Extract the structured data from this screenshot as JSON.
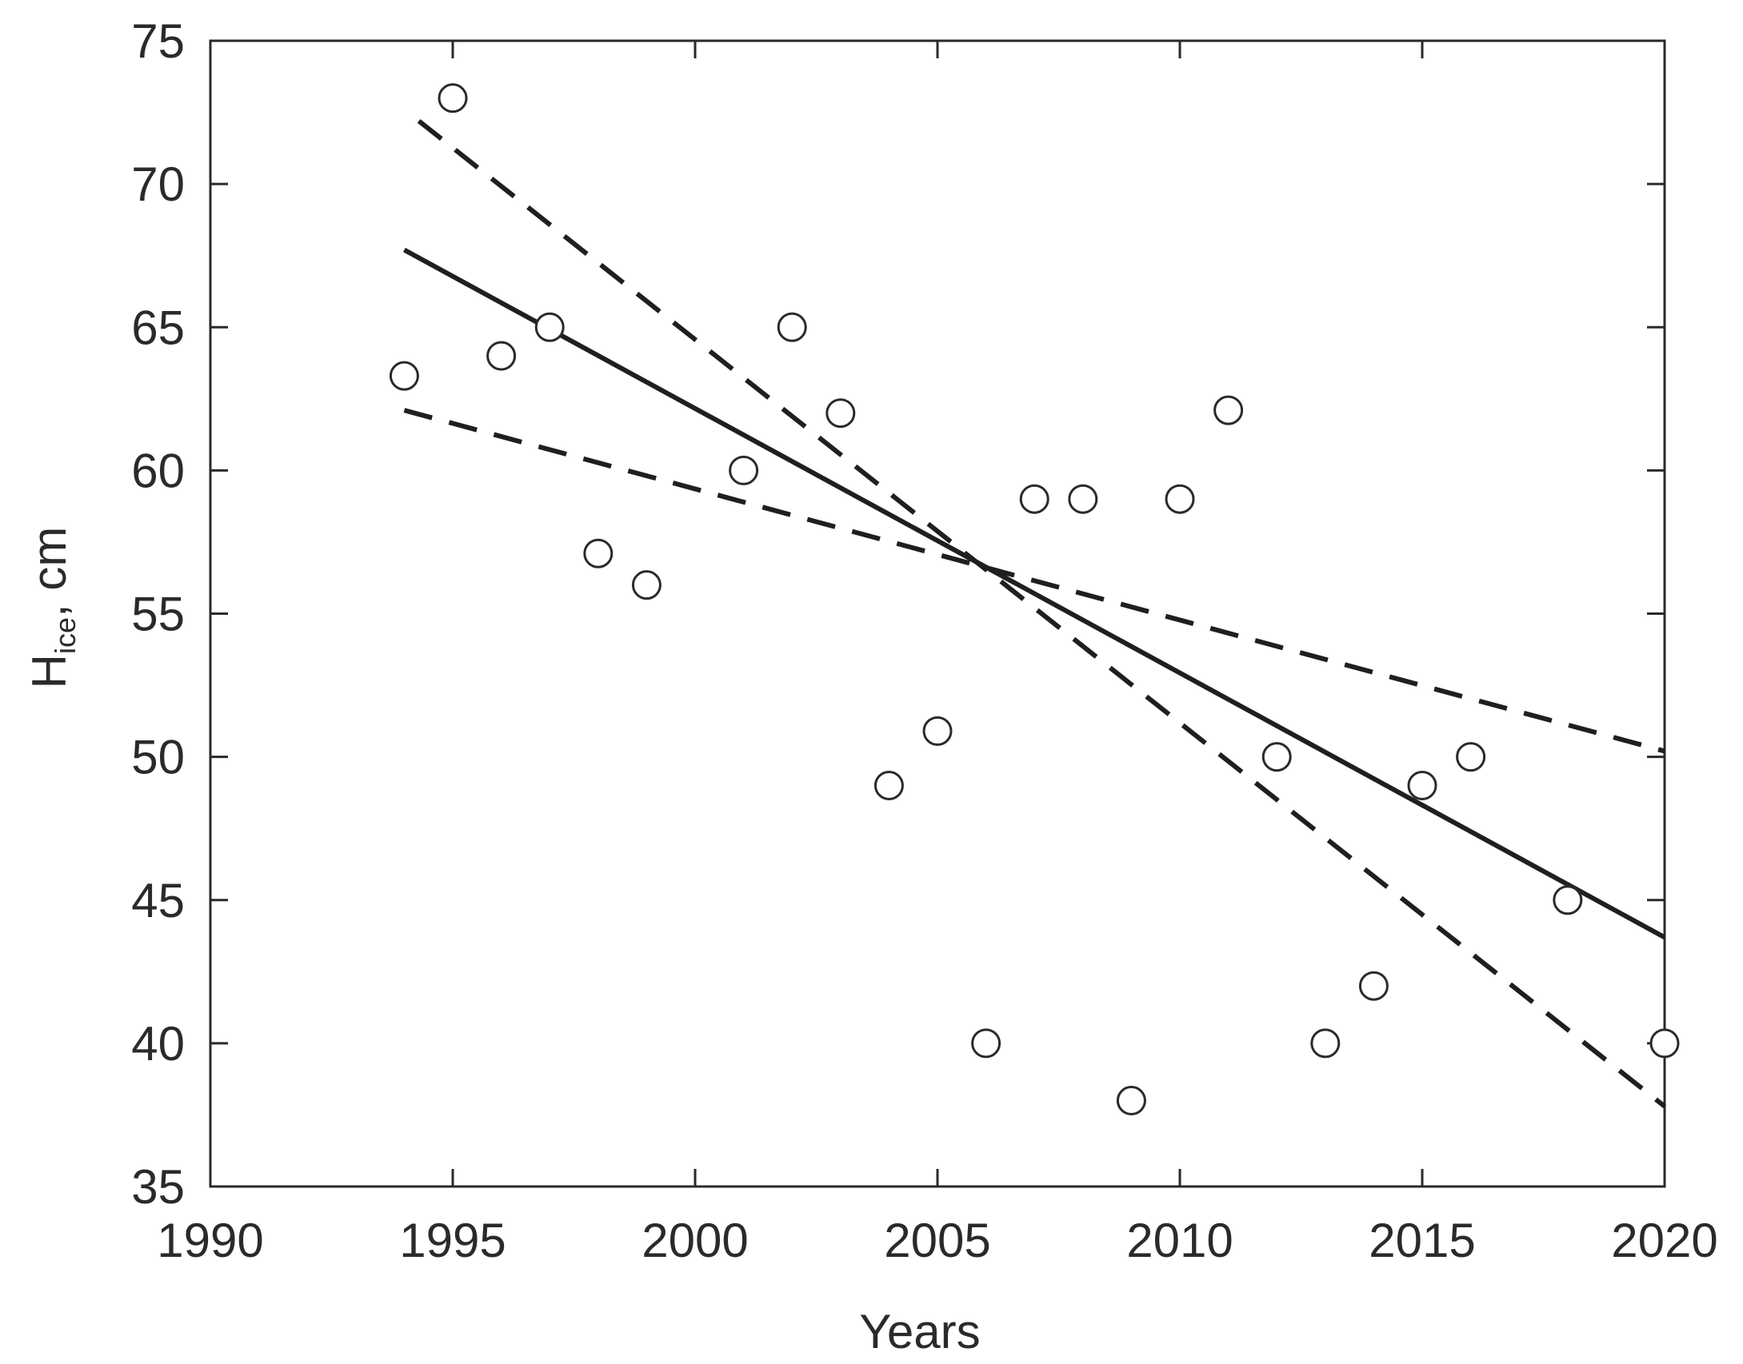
{
  "chart_data": {
    "type": "scatter",
    "xlabel": "Years",
    "ylabel_main": "H",
    "ylabel_sub": "ice",
    "ylabel_unit": ", cm",
    "xlim": [
      1990,
      2020
    ],
    "ylim": [
      35,
      75
    ],
    "xticks": [
      1990,
      1995,
      2000,
      2005,
      2010,
      2015,
      2020
    ],
    "yticks": [
      35,
      40,
      45,
      50,
      55,
      60,
      65,
      70,
      75
    ],
    "grid": false,
    "points": [
      {
        "x": 1994,
        "y": 63.3
      },
      {
        "x": 1995,
        "y": 73
      },
      {
        "x": 1996,
        "y": 64
      },
      {
        "x": 1997,
        "y": 65
      },
      {
        "x": 1998,
        "y": 57.1
      },
      {
        "x": 1999,
        "y": 56
      },
      {
        "x": 2001,
        "y": 60
      },
      {
        "x": 2002,
        "y": 65
      },
      {
        "x": 2003,
        "y": 62
      },
      {
        "x": 2004,
        "y": 49
      },
      {
        "x": 2005,
        "y": 50.9
      },
      {
        "x": 2006,
        "y": 40
      },
      {
        "x": 2007,
        "y": 59
      },
      {
        "x": 2008,
        "y": 59
      },
      {
        "x": 2009,
        "y": 38
      },
      {
        "x": 2010,
        "y": 59
      },
      {
        "x": 2011,
        "y": 62.1
      },
      {
        "x": 2012,
        "y": 50
      },
      {
        "x": 2013,
        "y": 40
      },
      {
        "x": 2014,
        "y": 42
      },
      {
        "x": 2015,
        "y": 49
      },
      {
        "x": 2016,
        "y": 50
      },
      {
        "x": 2018,
        "y": 45
      },
      {
        "x": 2020,
        "y": 40
      }
    ],
    "trend_line": {
      "x": [
        1994,
        2020
      ],
      "y": [
        67.7,
        43.7
      ]
    },
    "confidence_bounds": [
      {
        "x": [
          1994.3,
          2020
        ],
        "y": [
          72.2,
          37.8
        ]
      },
      {
        "x": [
          1994,
          2020
        ],
        "y": [
          62.1,
          50.2
        ]
      }
    ]
  }
}
